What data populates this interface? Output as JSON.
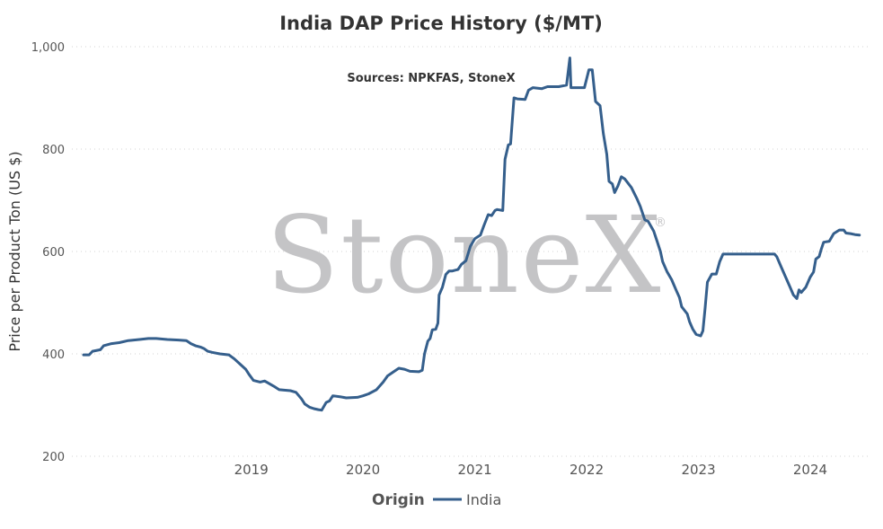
{
  "chart_data": {
    "type": "line",
    "title": "India DAP Price History ($/MT)",
    "subtitle": "Sources: NPKFAS, StoneX",
    "watermark": "StoneX",
    "watermark_mark": "®",
    "ylabel": "Price per Product Ton (US $)",
    "xlabel": "",
    "ylim": [
      200,
      1000
    ],
    "xlim": [
      2018.0,
      2024.95
    ],
    "yticks": [
      {
        "value": 200,
        "label": "200"
      },
      {
        "value": 400,
        "label": "400"
      },
      {
        "value": 600,
        "label": "600"
      },
      {
        "value": 800,
        "label": "800"
      },
      {
        "value": 1000,
        "label": "1,000"
      }
    ],
    "xticks": [
      {
        "value": 2019,
        "label": "2019"
      },
      {
        "value": 2020,
        "label": "2020"
      },
      {
        "value": 2021,
        "label": "2021"
      },
      {
        "value": 2022,
        "label": "2022"
      },
      {
        "value": 2023,
        "label": "2023"
      },
      {
        "value": 2024,
        "label": "2024"
      }
    ],
    "grid": "horizontal-dotted",
    "legend": {
      "title": "Origin",
      "position": "bottom-center"
    },
    "series": [
      {
        "name": "India",
        "color": "#355f8c",
        "points": [
          [
            2018.0,
            398
          ],
          [
            2018.05,
            398
          ],
          [
            2018.08,
            405
          ],
          [
            2018.15,
            408
          ],
          [
            2018.18,
            416
          ],
          [
            2018.25,
            420
          ],
          [
            2018.32,
            422
          ],
          [
            2018.4,
            426
          ],
          [
            2018.5,
            428
          ],
          [
            2018.58,
            430
          ],
          [
            2018.65,
            430
          ],
          [
            2018.75,
            428
          ],
          [
            2018.85,
            427
          ],
          [
            2018.92,
            426
          ],
          [
            2018.96,
            420
          ],
          [
            2019.0,
            416
          ],
          [
            2019.05,
            413
          ],
          [
            2019.08,
            410
          ],
          [
            2019.11,
            405
          ],
          [
            2019.15,
            403
          ],
          [
            2019.22,
            400
          ],
          [
            2019.3,
            398
          ],
          [
            2019.35,
            390
          ],
          [
            2019.4,
            380
          ],
          [
            2019.45,
            370
          ],
          [
            2019.48,
            360
          ],
          [
            2019.52,
            348
          ],
          [
            2019.58,
            345
          ],
          [
            2019.62,
            347
          ],
          [
            2019.66,
            342
          ],
          [
            2019.7,
            337
          ],
          [
            2019.75,
            330
          ],
          [
            2019.85,
            328
          ],
          [
            2019.9,
            325
          ],
          [
            2019.95,
            312
          ],
          [
            2019.98,
            302
          ],
          [
            2020.02,
            296
          ],
          [
            2020.06,
            293
          ],
          [
            2020.1,
            291
          ],
          [
            2020.13,
            290
          ],
          [
            2020.17,
            305
          ],
          [
            2020.2,
            308
          ],
          [
            2020.23,
            318
          ],
          [
            2020.3,
            316
          ],
          [
            2020.35,
            314
          ],
          [
            2020.45,
            315
          ],
          [
            2020.5,
            318
          ],
          [
            2020.55,
            322
          ],
          [
            2020.62,
            330
          ],
          [
            2020.68,
            345
          ],
          [
            2020.72,
            357
          ],
          [
            2020.78,
            366
          ],
          [
            2020.82,
            372
          ],
          [
            2020.87,
            370
          ],
          [
            2020.92,
            366
          ],
          [
            2021.0,
            365
          ],
          [
            2021.03,
            368
          ],
          [
            2021.05,
            400
          ],
          [
            2021.08,
            425
          ],
          [
            2021.1,
            430
          ],
          [
            2021.12,
            447
          ],
          [
            2021.15,
            448
          ],
          [
            2021.17,
            460
          ],
          [
            2021.18,
            515
          ],
          [
            2021.21,
            530
          ],
          [
            2021.24,
            555
          ],
          [
            2021.27,
            562
          ],
          [
            2021.3,
            562
          ],
          [
            2021.35,
            565
          ],
          [
            2021.38,
            575
          ],
          [
            2021.42,
            582
          ],
          [
            2021.46,
            610
          ],
          [
            2021.5,
            625
          ],
          [
            2021.55,
            632
          ],
          [
            2021.58,
            650
          ],
          [
            2021.62,
            672
          ],
          [
            2021.65,
            670
          ],
          [
            2021.68,
            680
          ],
          [
            2021.7,
            682
          ],
          [
            2021.75,
            680
          ],
          [
            2021.77,
            780
          ],
          [
            2021.8,
            808
          ],
          [
            2021.82,
            810
          ],
          [
            2021.85,
            900
          ],
          [
            2021.88,
            898
          ],
          [
            2021.95,
            897
          ],
          [
            2021.98,
            915
          ],
          [
            2022.02,
            920
          ],
          [
            2022.1,
            918
          ],
          [
            2022.15,
            922
          ],
          [
            2022.25,
            922
          ],
          [
            2022.32,
            925
          ],
          [
            2022.35,
            978
          ],
          [
            2022.36,
            920
          ],
          [
            2022.48,
            920
          ],
          [
            2022.52,
            955
          ],
          [
            2022.55,
            955
          ],
          [
            2022.58,
            893
          ],
          [
            2022.62,
            885
          ],
          [
            2022.65,
            830
          ],
          [
            2022.68,
            790
          ],
          [
            2022.7,
            737
          ],
          [
            2022.73,
            732
          ],
          [
            2022.75,
            715
          ],
          [
            2022.78,
            728
          ],
          [
            2022.81,
            746
          ],
          [
            2022.84,
            742
          ],
          [
            2022.9,
            725
          ],
          [
            2022.95,
            703
          ],
          [
            2022.98,
            688
          ],
          [
            2023.0,
            675
          ],
          [
            2023.02,
            662
          ],
          [
            2023.05,
            659
          ],
          [
            2023.1,
            640
          ],
          [
            2023.13,
            620
          ],
          [
            2023.16,
            600
          ],
          [
            2023.18,
            580
          ],
          [
            2023.22,
            560
          ],
          [
            2023.26,
            545
          ],
          [
            2023.3,
            525
          ],
          [
            2023.33,
            510
          ],
          [
            2023.35,
            492
          ],
          [
            2023.4,
            478
          ],
          [
            2023.42,
            463
          ],
          [
            2023.45,
            448
          ],
          [
            2023.48,
            438
          ],
          [
            2023.52,
            435
          ],
          [
            2023.54,
            445
          ],
          [
            2023.56,
            490
          ],
          [
            2023.58,
            540
          ],
          [
            2023.62,
            556
          ],
          [
            2023.66,
            556
          ],
          [
            2023.69,
            580
          ],
          [
            2023.72,
            595
          ],
          [
            2023.8,
            595
          ],
          [
            2023.9,
            595
          ],
          [
            2024.0,
            595
          ],
          [
            2024.1,
            595
          ],
          [
            2024.18,
            595
          ],
          [
            2024.2,
            590
          ],
          [
            2024.24,
            570
          ],
          [
            2024.28,
            550
          ],
          [
            2024.32,
            530
          ],
          [
            2024.35,
            515
          ],
          [
            2024.38,
            508
          ],
          [
            2024.4,
            525
          ],
          [
            2024.42,
            520
          ],
          [
            2024.46,
            530
          ],
          [
            2024.5,
            550
          ],
          [
            2024.53,
            560
          ],
          [
            2024.55,
            585
          ],
          [
            2024.58,
            590
          ],
          [
            2024.6,
            605
          ],
          [
            2024.62,
            618
          ],
          [
            2024.67,
            620
          ],
          [
            2024.71,
            635
          ],
          [
            2024.76,
            642
          ],
          [
            2024.8,
            642
          ],
          [
            2024.82,
            636
          ],
          [
            2024.86,
            635
          ],
          [
            2024.9,
            633
          ],
          [
            2024.94,
            632
          ]
        ]
      }
    ]
  }
}
